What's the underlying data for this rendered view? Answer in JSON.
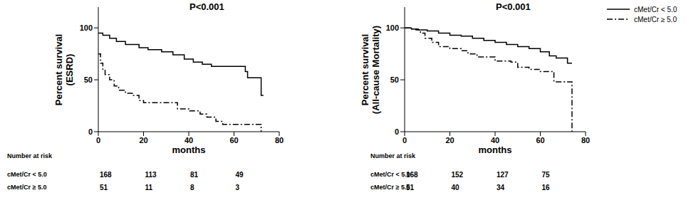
{
  "chart_data": [
    {
      "type": "line",
      "title": "P<0.001",
      "x_label": "months",
      "y_label": "Percent survival\n(ESRD)",
      "xlim": [
        0,
        80
      ],
      "xticks": [
        0,
        20,
        40,
        60,
        80
      ],
      "ylim": [
        0,
        120
      ],
      "yticks": [
        0,
        50,
        100
      ],
      "grid": false,
      "at_risk_title": "Number at risk",
      "at_risk_x": [
        0,
        20,
        40,
        60
      ],
      "series": [
        {
          "name": "cMet/Cr < 5.0",
          "color": "#000000",
          "line_style": "solid",
          "x": [
            0,
            2,
            5,
            8,
            12,
            18,
            22,
            28,
            33,
            38,
            42,
            46,
            50,
            60,
            65,
            66,
            72,
            73
          ],
          "values": [
            95,
            93,
            90,
            87,
            84,
            81,
            79,
            77,
            74,
            70,
            67,
            65,
            63,
            63,
            58,
            52,
            35,
            35
          ],
          "at_risk": [
            168,
            113,
            81,
            49
          ]
        },
        {
          "name": "cMet/Cr ≥ 5.0",
          "color": "#000000",
          "line_style": "dashdot",
          "x": [
            0,
            1,
            2,
            3,
            5,
            7,
            9,
            12,
            15,
            18,
            20,
            32,
            35,
            40,
            45,
            48,
            52,
            55,
            72
          ],
          "values": [
            75,
            66,
            60,
            55,
            50,
            44,
            40,
            37,
            35,
            30,
            28,
            28,
            22,
            20,
            17,
            14,
            10,
            7,
            0
          ],
          "at_risk": [
            51,
            11,
            8,
            3
          ]
        }
      ]
    },
    {
      "type": "line",
      "title": "P<0.001",
      "x_label": "months",
      "y_label": "Percent survival\n(All-cause Mortality)",
      "xlim": [
        0,
        80
      ],
      "xticks": [
        0,
        20,
        40,
        60,
        80
      ],
      "ylim": [
        0,
        120
      ],
      "yticks": [
        0,
        50,
        100
      ],
      "grid": false,
      "legend": "right",
      "at_risk_title": "Number at risk",
      "at_risk_x": [
        0,
        20,
        40,
        60
      ],
      "series": [
        {
          "name": "cMet/Cr < 5.0",
          "color": "#000000",
          "line_style": "solid",
          "x": [
            0,
            3,
            6,
            10,
            15,
            20,
            25,
            30,
            35,
            40,
            45,
            50,
            55,
            60,
            64,
            67,
            72,
            74
          ],
          "values": [
            100,
            99,
            98,
            97,
            95,
            93,
            92,
            90,
            88,
            86,
            84,
            82,
            80,
            77,
            73,
            71,
            66,
            66
          ],
          "at_risk": [
            168,
            152,
            127,
            75
          ]
        },
        {
          "name": "cMet/Cr ≥ 5.0",
          "color": "#000000",
          "line_style": "dashdot",
          "x": [
            0,
            3,
            5,
            7,
            9,
            12,
            15,
            20,
            25,
            28,
            32,
            40,
            47,
            50,
            55,
            60,
            65,
            66,
            73,
            74
          ],
          "values": [
            100,
            99,
            98,
            95,
            90,
            86,
            82,
            80,
            78,
            75,
            72,
            68,
            67,
            62,
            60,
            58,
            58,
            48,
            48,
            0
          ],
          "at_risk": [
            51,
            40,
            34,
            16
          ]
        }
      ]
    }
  ]
}
